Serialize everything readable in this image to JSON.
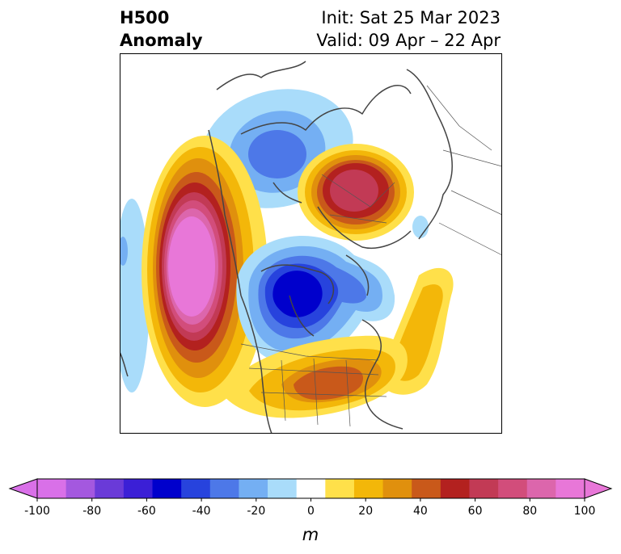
{
  "title": {
    "left_line1": "H500",
    "left_line2": "Anomaly",
    "right_line1": "Init: Sat 25 Mar 2023",
    "right_line2": "Valid: 09 Apr – 22 Apr"
  },
  "map": {
    "projection": "north-polar-stereographic",
    "features": [
      {
        "name": "ridge-east-pacific",
        "sign": "positive",
        "peak_anomaly_m": 100
      },
      {
        "name": "ridge-barents-kara",
        "sign": "positive",
        "peak_anomaly_m": 70
      },
      {
        "name": "ridge-eastern-us",
        "sign": "positive",
        "peak_anomaly_m": 50
      },
      {
        "name": "ridge-north-atlantic",
        "sign": "positive",
        "peak_anomaly_m": 30
      },
      {
        "name": "trough-hudson-bay",
        "sign": "negative",
        "peak_anomaly_m": -60
      },
      {
        "name": "trough-siberia",
        "sign": "negative",
        "peak_anomaly_m": -40
      }
    ]
  },
  "colorbar": {
    "unit": "m",
    "extend": "both",
    "levels": [
      -100,
      -90,
      -80,
      -70,
      -60,
      -50,
      -40,
      -30,
      -20,
      -10,
      10,
      20,
      30,
      40,
      50,
      60,
      70,
      80,
      90,
      100
    ],
    "colors": [
      "#d970e8",
      "#a458df",
      "#6a3ad8",
      "#3b1fd6",
      "#0000cc",
      "#2743dd",
      "#4d78e8",
      "#74aff3",
      "#a9dcfa",
      "#ffffff",
      "#ffe04a",
      "#f3b709",
      "#e0900d",
      "#c9591a",
      "#b3211f",
      "#c23a55",
      "#d24d7b",
      "#dc66ac",
      "#e877d8"
    ],
    "under_color": "#d970e8",
    "over_color": "#e877d8",
    "tick_labels": [
      "-100",
      "-80",
      "-60",
      "-40",
      "-20",
      "0",
      "20",
      "40",
      "60",
      "80",
      "100"
    ]
  }
}
